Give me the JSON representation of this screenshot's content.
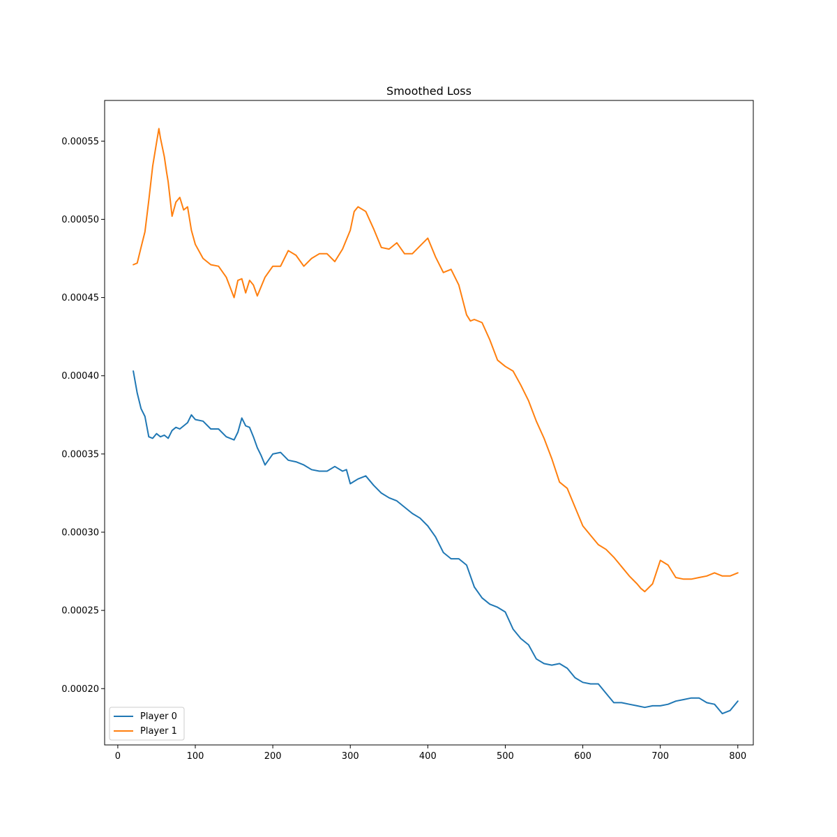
{
  "chart_data": {
    "type": "line",
    "title": "Smoothed Loss",
    "xlabel": "",
    "ylabel": "",
    "xlim": [
      -17,
      820
    ],
    "ylim": [
      0.000164,
      0.000576
    ],
    "xticks": [
      0,
      100,
      200,
      300,
      400,
      500,
      600,
      700,
      800
    ],
    "yticks": [
      0.0002,
      0.00025,
      0.0003,
      0.00035,
      0.0004,
      0.00045,
      0.0005,
      0.00055
    ],
    "ytick_labels": [
      "0.00020",
      "0.00025",
      "0.00030",
      "0.00035",
      "0.00040",
      "0.00045",
      "0.00050",
      "0.00055"
    ],
    "grid": false,
    "legend_position": "lower-left",
    "series": [
      {
        "name": "Player 0",
        "color": "#1f77b4",
        "x": [
          20,
          25,
          30,
          35,
          40,
          45,
          50,
          55,
          60,
          65,
          70,
          75,
          80,
          90,
          95,
          100,
          110,
          120,
          130,
          140,
          150,
          155,
          160,
          165,
          170,
          175,
          180,
          185,
          190,
          200,
          210,
          220,
          230,
          240,
          250,
          260,
          270,
          280,
          290,
          295,
          300,
          310,
          320,
          330,
          340,
          350,
          360,
          370,
          380,
          390,
          400,
          410,
          420,
          430,
          440,
          450,
          460,
          470,
          480,
          490,
          500,
          510,
          520,
          530,
          540,
          550,
          560,
          570,
          580,
          590,
          600,
          610,
          620,
          630,
          640,
          650,
          660,
          670,
          680,
          690,
          700,
          710,
          720,
          730,
          740,
          750,
          760,
          770,
          780,
          790,
          800
        ],
        "values": [
          0.000403,
          0.000389,
          0.000379,
          0.000374,
          0.000361,
          0.00036,
          0.000363,
          0.000361,
          0.000362,
          0.00036,
          0.000365,
          0.000367,
          0.000366,
          0.00037,
          0.000375,
          0.000372,
          0.000371,
          0.000366,
          0.000366,
          0.000361,
          0.000359,
          0.000364,
          0.000373,
          0.000368,
          0.000367,
          0.000361,
          0.000354,
          0.000349,
          0.000343,
          0.00035,
          0.000351,
          0.000346,
          0.000345,
          0.000343,
          0.00034,
          0.000339,
          0.000339,
          0.000342,
          0.000339,
          0.00034,
          0.000331,
          0.000334,
          0.000336,
          0.00033,
          0.000325,
          0.000322,
          0.00032,
          0.000316,
          0.000312,
          0.000309,
          0.000304,
          0.000297,
          0.000287,
          0.000283,
          0.000283,
          0.000279,
          0.000265,
          0.000258,
          0.000254,
          0.000252,
          0.000249,
          0.000238,
          0.000232,
          0.000228,
          0.000219,
          0.000216,
          0.000215,
          0.000216,
          0.000213,
          0.000207,
          0.000204,
          0.000203,
          0.000203,
          0.000197,
          0.000191,
          0.000191,
          0.00019,
          0.000189,
          0.000188,
          0.000189,
          0.000189,
          0.00019,
          0.000192,
          0.000193,
          0.000194,
          0.000194,
          0.000191,
          0.00019,
          0.000184,
          0.000186,
          0.000192
        ]
      },
      {
        "name": "Player 1",
        "color": "#ff7f0e",
        "x": [
          20,
          25,
          30,
          35,
          40,
          45,
          50,
          53,
          55,
          60,
          63,
          65,
          70,
          75,
          80,
          85,
          90,
          95,
          100,
          110,
          120,
          130,
          140,
          150,
          155,
          160,
          165,
          170,
          175,
          180,
          190,
          200,
          210,
          220,
          230,
          240,
          250,
          260,
          270,
          280,
          290,
          300,
          305,
          310,
          320,
          330,
          340,
          350,
          360,
          370,
          380,
          390,
          400,
          410,
          420,
          430,
          440,
          450,
          455,
          460,
          470,
          480,
          490,
          500,
          510,
          520,
          530,
          540,
          550,
          560,
          570,
          580,
          590,
          600,
          610,
          620,
          630,
          640,
          650,
          660,
          670,
          675,
          680,
          690,
          700,
          710,
          720,
          730,
          740,
          750,
          760,
          770,
          780,
          790,
          800
        ],
        "values": [
          0.000471,
          0.000472,
          0.000482,
          0.000492,
          0.000512,
          0.000534,
          0.000549,
          0.000558,
          0.000552,
          0.00054,
          0.00053,
          0.000524,
          0.000502,
          0.000511,
          0.000514,
          0.000506,
          0.000508,
          0.000493,
          0.000484,
          0.000475,
          0.000471,
          0.00047,
          0.000463,
          0.00045,
          0.000461,
          0.000462,
          0.000453,
          0.000461,
          0.000458,
          0.000451,
          0.000463,
          0.00047,
          0.00047,
          0.00048,
          0.000477,
          0.00047,
          0.000475,
          0.000478,
          0.000478,
          0.000473,
          0.000481,
          0.000493,
          0.000505,
          0.000508,
          0.000505,
          0.000494,
          0.000482,
          0.000481,
          0.000485,
          0.000478,
          0.000478,
          0.000483,
          0.000488,
          0.000476,
          0.000466,
          0.000468,
          0.000458,
          0.000439,
          0.000435,
          0.000436,
          0.000434,
          0.000423,
          0.00041,
          0.000406,
          0.000403,
          0.000394,
          0.000384,
          0.000371,
          0.00036,
          0.000347,
          0.000332,
          0.000328,
          0.000316,
          0.000304,
          0.000298,
          0.000292,
          0.000289,
          0.000284,
          0.000278,
          0.000272,
          0.000267,
          0.000264,
          0.000262,
          0.000267,
          0.000282,
          0.000279,
          0.000271,
          0.00027,
          0.00027,
          0.000271,
          0.000272,
          0.000274,
          0.000272,
          0.000272,
          0.000274
        ]
      }
    ]
  }
}
